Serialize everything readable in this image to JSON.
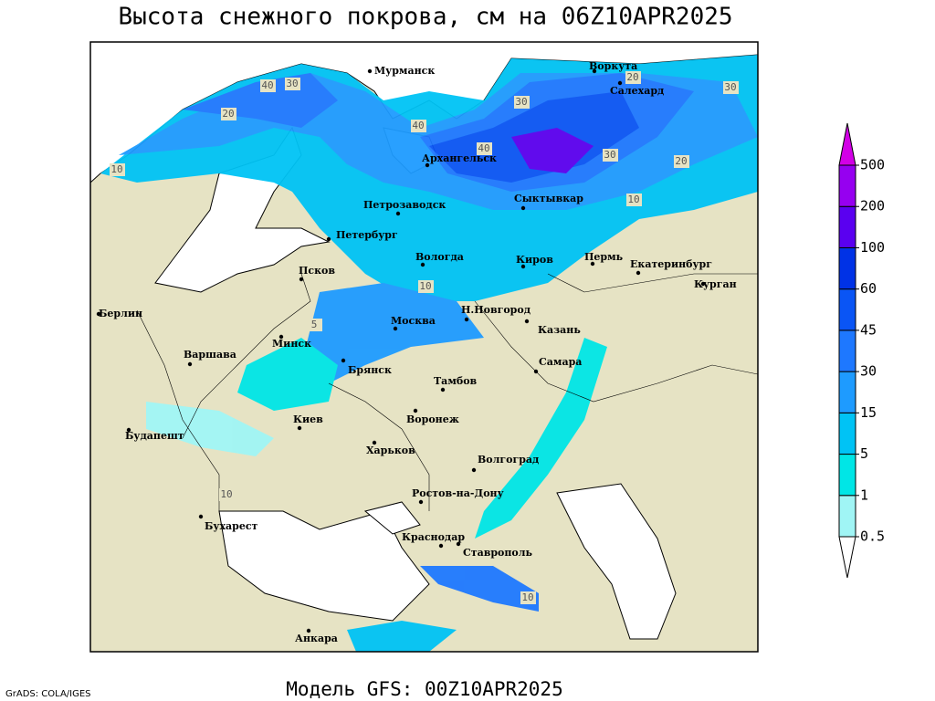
{
  "header": {
    "title": "Высота снежного покрова, см на 06Z10APR2025"
  },
  "legend": {
    "levels": [
      0.5,
      1,
      5,
      15,
      30,
      45,
      60,
      100,
      200,
      500
    ],
    "colors": [
      "#ffffff",
      "#a0f5f5",
      "#00e6e6",
      "#00c3f5",
      "#1e9bff",
      "#1e78ff",
      "#0a55f5",
      "#0032e6",
      "#5a00f0",
      "#9600f0",
      "#d200e6"
    ]
  },
  "cities": [
    "Мурманск",
    "Воркута",
    "Салехард",
    "Архангельск",
    "Петрозаводск",
    "Сыктывкар",
    "Петербург",
    "Вологда",
    "Киров",
    "Пермь",
    "Екатеринбург",
    "Псков",
    "Курган",
    "Берлин",
    "Н.Новгород",
    "Москва",
    "Казань",
    "Минск",
    "Варшава",
    "Самара",
    "Брянск",
    "Тамбов",
    "Киев",
    "Воронеж",
    "Будапешт",
    "Харьков",
    "Волгоград",
    "Ростов-на-Дону",
    "Бухарест",
    "Краснодар",
    "Ставрополь",
    "Анкара"
  ],
  "contour_labels": [
    40,
    30,
    20,
    10,
    40,
    30,
    20,
    30,
    40,
    30,
    20,
    10,
    10,
    5,
    10,
    10
  ],
  "footer": {
    "model": "Модель GFS: 00Z10APR2025",
    "credit": "GrADS: COLA/IGES"
  }
}
